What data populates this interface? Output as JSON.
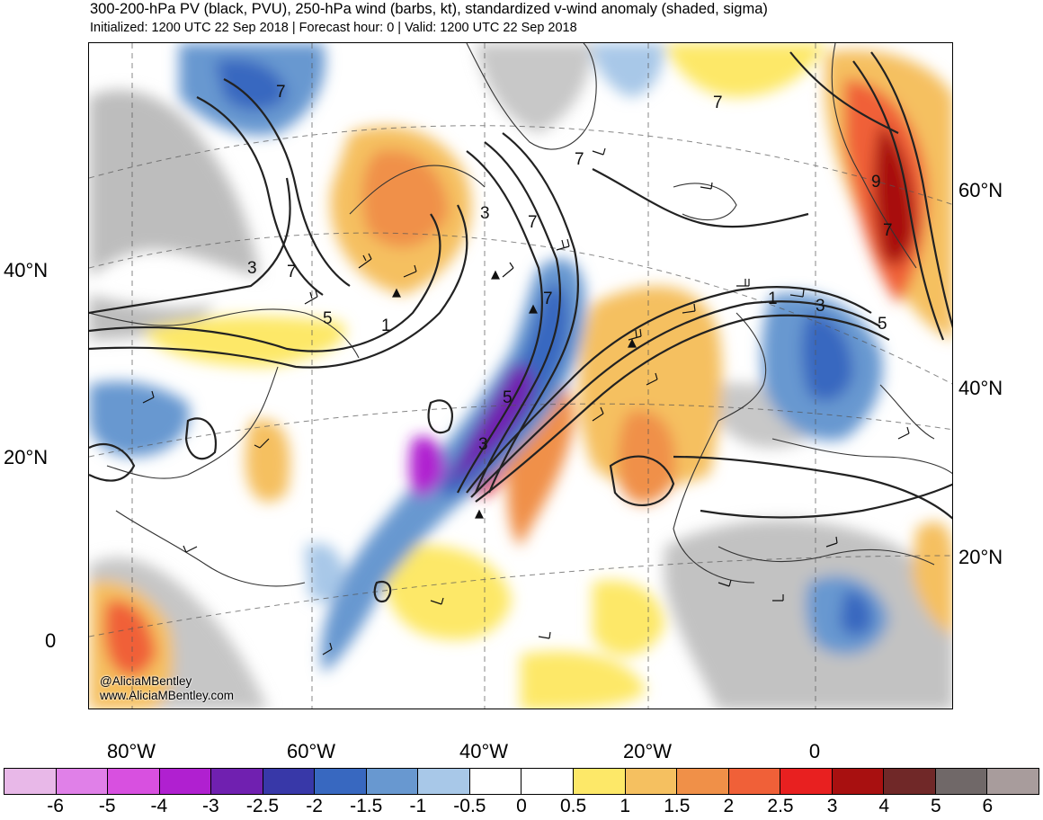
{
  "header": {
    "title": "300-200-hPa PV (black, PVU), 250-hPa wind (barbs, kt), standardized v-wind anomaly (shaded, sigma)",
    "subtitle": "Initialized: 1200 UTC 22 Sep 2018 | Forecast hour: 0 | Valid: 1200 UTC 22 Sep 2018"
  },
  "credit": {
    "handle": "@AliciaMBentley",
    "website": "www.AliciaMBentley.com"
  },
  "axes": {
    "lat_left": [
      "40°N",
      "20°N",
      "0"
    ],
    "lat_right": [
      "60°N",
      "40°N",
      "20°N"
    ],
    "lon_bottom": [
      "80°W",
      "60°W",
      "40°W",
      "20°W",
      "0"
    ]
  },
  "contour_labels": [
    "7",
    "7",
    "3",
    "7",
    "5",
    "1",
    "3",
    "7",
    "7",
    "5",
    "3",
    "9",
    "7",
    "1",
    "3",
    "5",
    "7"
  ],
  "colorbar": {
    "ticks": [
      "-6",
      "-5",
      "-4",
      "-3",
      "-2.5",
      "-2",
      "-1.5",
      "-1",
      "-0.5",
      "0",
      "0.5",
      "1",
      "1.5",
      "2",
      "2.5",
      "3",
      "4",
      "5",
      "6"
    ],
    "colors": [
      "#e8b8e8",
      "#e080e8",
      "#d850e0",
      "#b020d0",
      "#7020b0",
      "#3838a8",
      "#3868c0",
      "#6898d0",
      "#a8c8e8",
      "#ffffff",
      "#ffffff",
      "#fde868",
      "#f5c060",
      "#f09048",
      "#f06038",
      "#e82020",
      "#a81010",
      "#702828",
      "#706868",
      "#a89c9c"
    ]
  }
}
